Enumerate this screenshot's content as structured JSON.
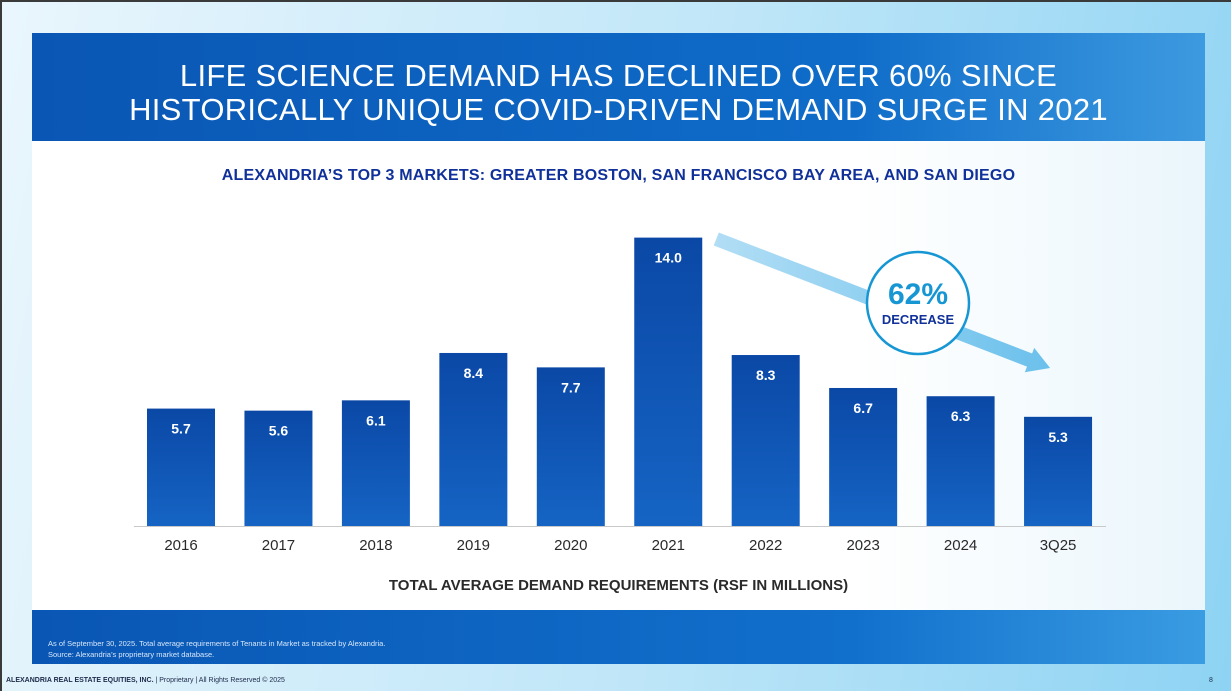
{
  "header": {
    "title_line1": "LIFE SCIENCE DEMAND HAS DECLINED OVER 60% SINCE",
    "title_line2": "HISTORICALLY UNIQUE COVID-DRIVEN DEMAND SURGE IN 2021"
  },
  "chart_data": {
    "type": "bar",
    "subtitle": "ALEXANDRIA’S TOP 3 MARKETS: GREATER BOSTON, SAN FRANCISCO BAY AREA, AND SAN DIEGO",
    "xlabel": "TOTAL AVERAGE DEMAND REQUIREMENTS (RSF IN MILLIONS)",
    "ylabel": "",
    "categories": [
      "2016",
      "2017",
      "2018",
      "2019",
      "2020",
      "2021",
      "2022",
      "2023",
      "2024",
      "3Q25"
    ],
    "values": [
      5.7,
      5.6,
      6.1,
      8.4,
      7.7,
      14.0,
      8.3,
      6.7,
      6.3,
      5.3
    ],
    "data_labels": [
      "5.7",
      "5.6",
      "6.1",
      "8.4",
      "7.7",
      "14.0",
      "8.3",
      "6.7",
      "6.3",
      "5.3"
    ],
    "grid": false,
    "bar_color": "#0d50aa",
    "annotation": {
      "value": "62%",
      "label": "DECREASE",
      "from_category": "2021",
      "to_category": "3Q25",
      "color": "#1796d4"
    }
  },
  "footer": {
    "note_line1": "As of September 30, 2025. Total average requirements of Tenants in Market as tracked by Alexandria.",
    "note_line2": "Source: Alexandria’s proprietary market database.",
    "company": "ALEXANDRIA REAL ESTATE EQUITIES, INC.",
    "rights": "| Proprietary | All Rights Reserved © 2025",
    "page": "8"
  }
}
